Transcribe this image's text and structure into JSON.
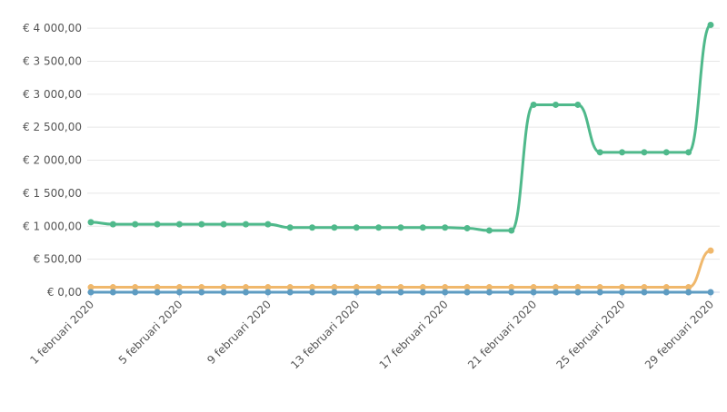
{
  "chart_data": {
    "type": "line",
    "categories": [
      "1 februari 2020",
      null,
      null,
      null,
      "5 februari 2020",
      null,
      null,
      null,
      "9 februari 2020",
      null,
      null,
      null,
      "13 februari 2020",
      null,
      null,
      null,
      "17 februari 2020",
      null,
      null,
      null,
      "21 februari 2020",
      null,
      null,
      null,
      "25 februari 2020",
      null,
      null,
      null,
      "29 februari 2020"
    ],
    "series": [
      {
        "color": "#4fb98b",
        "values": [
          1060,
          1030,
          1030,
          1030,
          1030,
          1030,
          1030,
          1030,
          1030,
          980,
          980,
          980,
          980,
          980,
          980,
          980,
          980,
          970,
          935,
          935,
          2840,
          2840,
          2840,
          2120,
          2120,
          2120,
          2120,
          2120,
          4050
        ]
      },
      {
        "color": "#f0b86c",
        "values": [
          75,
          75,
          75,
          75,
          75,
          75,
          75,
          75,
          75,
          75,
          75,
          75,
          75,
          75,
          75,
          75,
          75,
          75,
          75,
          75,
          75,
          75,
          75,
          75,
          75,
          75,
          75,
          75,
          630
        ]
      },
      {
        "color": "#5e9cc2",
        "values": [
          0,
          0,
          0,
          0,
          0,
          0,
          0,
          0,
          0,
          0,
          0,
          0,
          0,
          0,
          0,
          0,
          0,
          0,
          0,
          0,
          0,
          0,
          0,
          0,
          0,
          0,
          0,
          0,
          0
        ]
      }
    ],
    "ylim": [
      0,
      4400
    ],
    "yticks": [
      {
        "value": 0,
        "label": "€ 0,00"
      },
      {
        "value": 500,
        "label": "€ 500,00"
      },
      {
        "value": 1000,
        "label": "€ 1 000,00"
      },
      {
        "value": 1500,
        "label": "€ 1 500,00"
      },
      {
        "value": 2000,
        "label": "€ 2 000,00"
      },
      {
        "value": 2500,
        "label": "€ 2 500,00"
      },
      {
        "value": 3000,
        "label": "€ 3 000,00"
      },
      {
        "value": 3500,
        "label": "€ 3 500,00"
      },
      {
        "value": 4000,
        "label": "€ 4 000,00"
      }
    ],
    "grid": true
  }
}
